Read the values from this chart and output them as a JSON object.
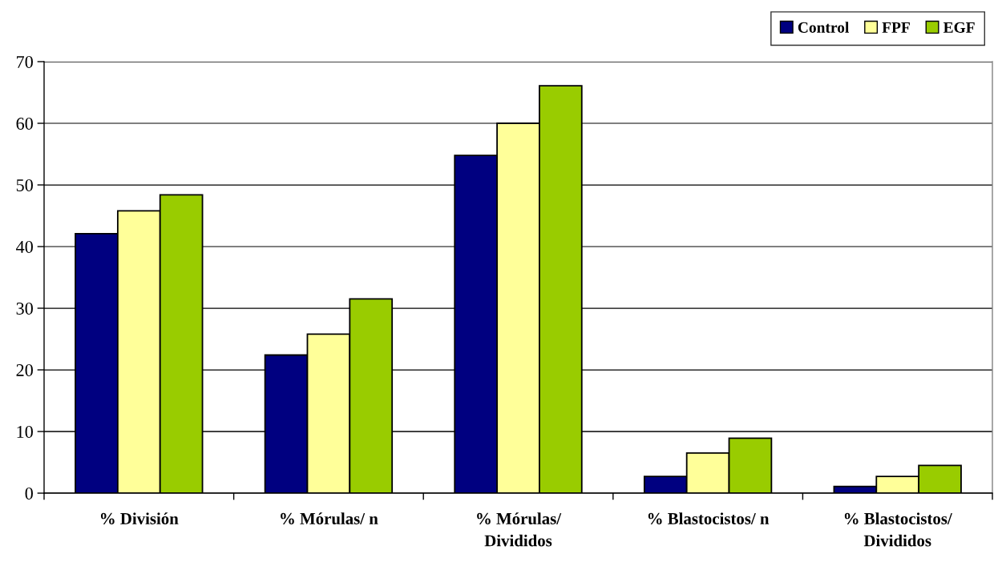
{
  "chart_data": {
    "type": "bar",
    "categories": [
      "% División",
      "% Mórulas/ n",
      "% Mórulas/\nDivididos",
      "% Blastocistos/ n",
      "% Blastocistos/\nDivididos"
    ],
    "series": [
      {
        "name": "Control",
        "color": "#000080",
        "values": [
          42.1,
          22.4,
          54.8,
          2.7,
          1.1
        ]
      },
      {
        "name": "FPF",
        "color": "#ffff99",
        "values": [
          45.8,
          25.8,
          60,
          6.5,
          2.7
        ]
      },
      {
        "name": "EGF",
        "color": "#99cc00",
        "values": [
          48.4,
          31.5,
          66.1,
          8.9,
          4.5
        ]
      }
    ],
    "ylim": [
      0,
      70
    ],
    "yticks": [
      0,
      10,
      20,
      30,
      40,
      50,
      60,
      70
    ],
    "grid": "y",
    "legend": "top right"
  }
}
